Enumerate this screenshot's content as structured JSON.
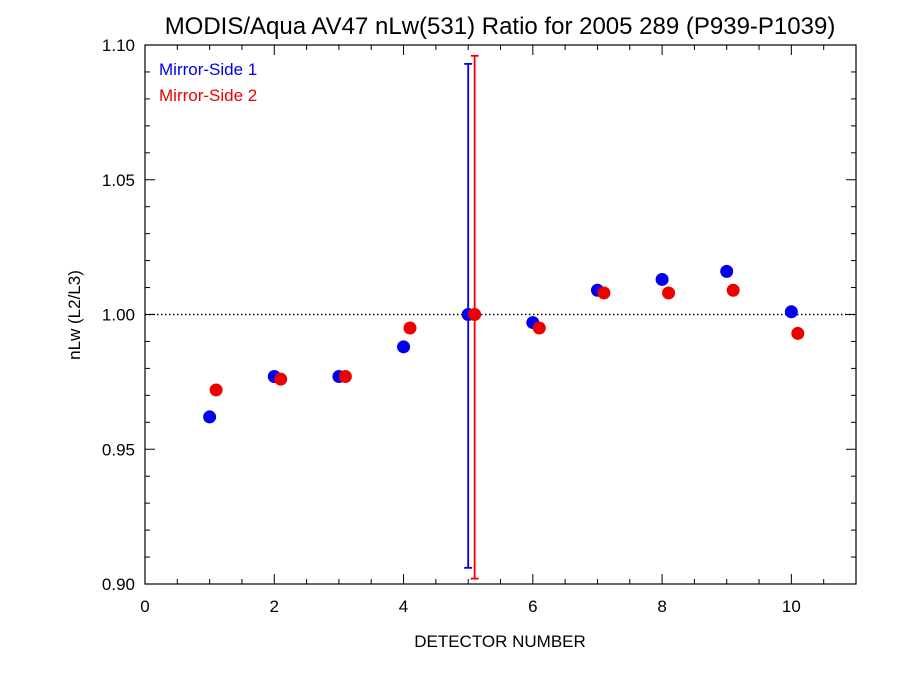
{
  "chart_data": {
    "type": "scatter",
    "title": "MODIS/Aqua AV47 nLw(531) Ratio for 2005 289 (P939-P1039)",
    "xlabel": "DETECTOR NUMBER",
    "ylabel": "nLw (L2/L3)",
    "xlim": [
      0,
      11
    ],
    "ylim": [
      0.9,
      1.1
    ],
    "x_ticks": [
      0,
      2,
      4,
      6,
      8,
      10
    ],
    "x_tick_labels": [
      "0",
      "2",
      "4",
      "6",
      "8",
      "10"
    ],
    "y_ticks": [
      0.9,
      0.95,
      1.0,
      1.05,
      1.1
    ],
    "y_tick_labels": [
      "0.90",
      "0.95",
      "1.00",
      "1.05",
      "1.10"
    ],
    "reference_line": 1.0,
    "legend_position": "top-left",
    "series": [
      {
        "name": "Mirror-Side 1",
        "color": "#0000ee",
        "x": [
          1,
          2,
          3,
          4,
          5,
          6,
          7,
          8,
          9,
          10
        ],
        "y": [
          0.962,
          0.977,
          0.977,
          0.988,
          1.0,
          0.997,
          1.009,
          1.013,
          1.016,
          1.001
        ],
        "error_bar": {
          "x": 5,
          "low": 0.906,
          "high": 1.093
        }
      },
      {
        "name": "Mirror-Side 2",
        "color": "#ee0000",
        "x": [
          1.1,
          2.1,
          3.1,
          4.1,
          5.1,
          6.1,
          7.1,
          8.1,
          9.1,
          10.1
        ],
        "y": [
          0.972,
          0.976,
          0.977,
          0.995,
          1.0,
          0.995,
          1.008,
          1.008,
          1.009,
          0.993
        ],
        "error_bar": {
          "x": 5.1,
          "low": 0.902,
          "high": 1.096
        }
      }
    ]
  }
}
